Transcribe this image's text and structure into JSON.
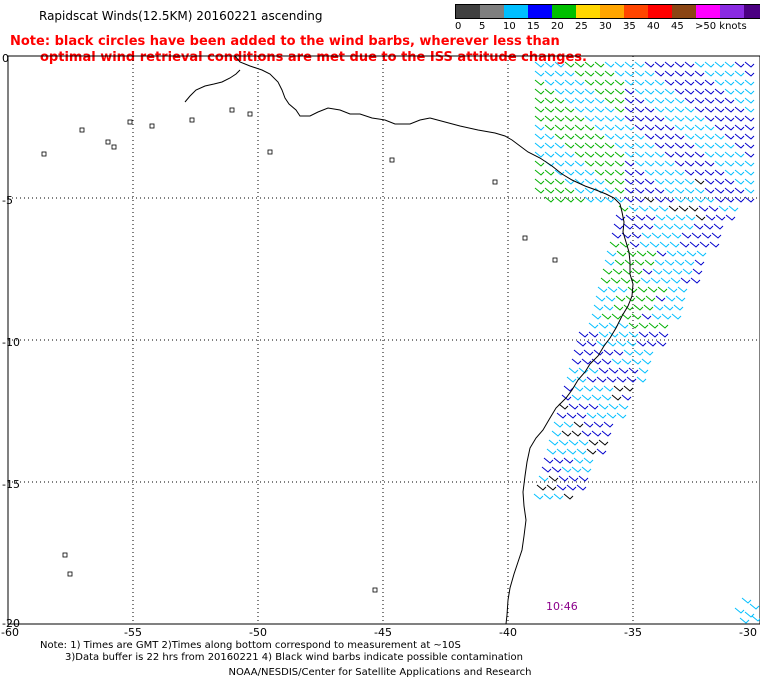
{
  "header": {
    "title": "Rapidscat Winds(12.5KM) 20160221 ascending"
  },
  "notice": {
    "line1": "Note: black circles have been added to the wind barbs, wherever less than",
    "line2": "optimal wind retrieval conditions are met due to the ISS attitude changes."
  },
  "legend": {
    "labels": [
      "0",
      "5",
      "10",
      "15",
      "20",
      "25",
      "30",
      "35",
      "40",
      "45",
      ">50 knots"
    ],
    "colors": [
      "#404040",
      "#7f7f7f",
      "#00bfff",
      "#0000ff",
      "#00c000",
      "#ffd700",
      "#ffa500",
      "#ff4500",
      "#ff0000",
      "#8b4513",
      "#ff00ff",
      "#8a2be2",
      "#4b0082"
    ]
  },
  "axes": {
    "x_ticks": [
      "-60",
      "-55",
      "-50",
      "-45",
      "-40",
      "-35",
      "-30"
    ],
    "y_ticks": [
      "0",
      "-5",
      "-10",
      "-15",
      "-20"
    ]
  },
  "time_label": "10:46",
  "footer": {
    "line1": "Note: 1) Times are GMT 2)Times along bottom correspond to measurement at ~10S",
    "line2": "3)Data buffer is 22 hrs from 20160221 4) Black wind barbs indicate possible contamination",
    "credit": "NOAA/NESDIS/Center for Satellite Applications and Research"
  },
  "wind_colors": {
    "light_blue": "#00bfff",
    "blue": "#0000cd",
    "green": "#00b000",
    "yellow": "#e6c000",
    "black": "#000000"
  }
}
